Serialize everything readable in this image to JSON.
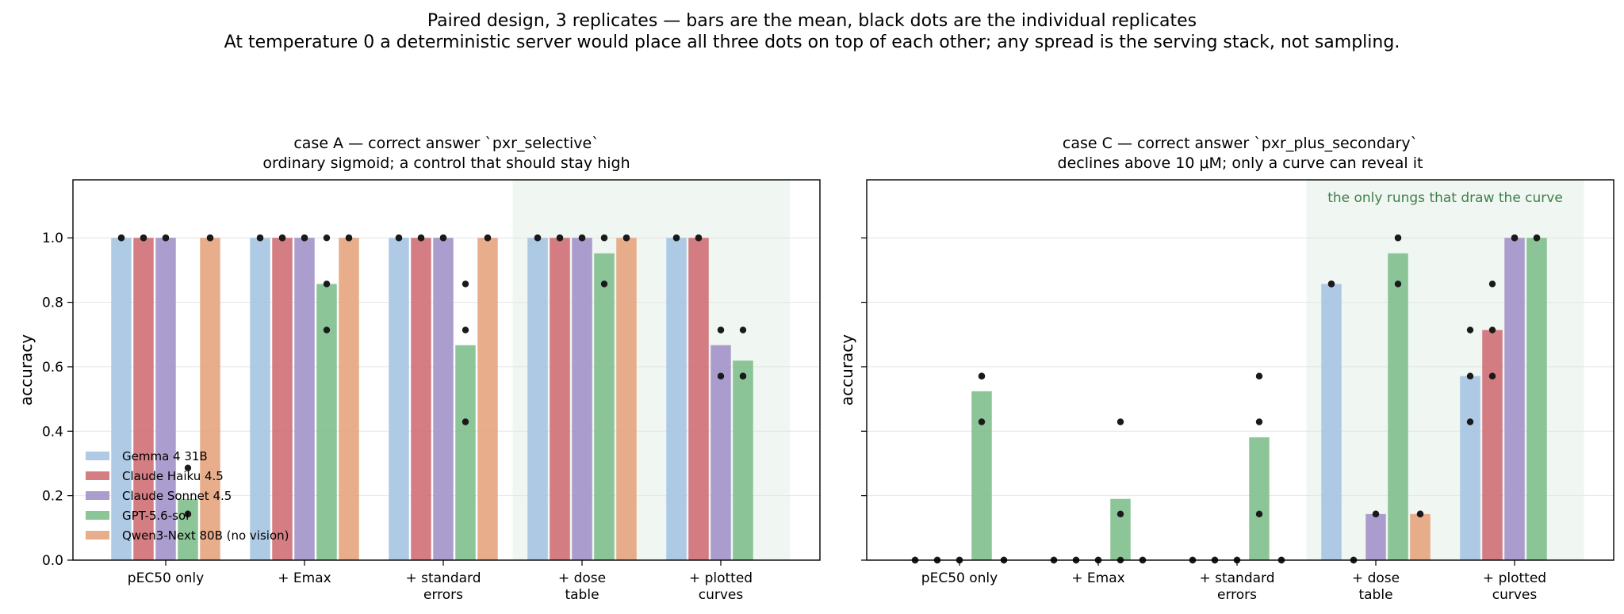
{
  "figure": {
    "suptitle_line1": "Paired design, 3 replicates — bars are the mean, black dots are the individual replicates",
    "suptitle_line2": "At temperature 0 a deterministic server would place all three dots on top of each other; any spread is the serving stack, not sampling."
  },
  "colors": {
    "Gemma 4 31B": "#a6c4e2",
    "Claude Haiku 4.5": "#cf6f76",
    "Claude Sonnet 4.5": "#a293c9",
    "GPT-5.6-sol": "#7fbf8c",
    "Qwen3-Next 80B (no vision)": "#e6a47e",
    "highlight_band": "#e6f0e8",
    "highlight_text": "#3f7f4a"
  },
  "chart_data": [
    {
      "type": "bar",
      "title": "case A — correct answer `pxr_selective`",
      "subtitle": "ordinary sigmoid; a control that should stay high",
      "xlabel": "",
      "ylabel": "accuracy",
      "ylim": [
        0,
        1.18
      ],
      "yticks": [
        "0.0",
        "0.2",
        "0.4",
        "0.6",
        "0.8",
        "1.0"
      ],
      "grid": "horizontal",
      "legend": "lower-left",
      "categories": [
        "pEC50 only",
        "+ Emax",
        "+ standard\nerrors",
        "+ dose\ntable",
        "+ plotted\ncurves"
      ],
      "highlight": {
        "from_category": 3,
        "to_category": 4,
        "label": ""
      },
      "series": [
        {
          "name": "Gemma 4 31B",
          "values": [
            1.0,
            1.0,
            1.0,
            1.0,
            1.0
          ],
          "replicates": [
            [
              1,
              1,
              1
            ],
            [
              1,
              1,
              1
            ],
            [
              1,
              1,
              1
            ],
            [
              1,
              1,
              1
            ],
            [
              1,
              1,
              1
            ]
          ]
        },
        {
          "name": "Claude Haiku 4.5",
          "values": [
            1.0,
            1.0,
            1.0,
            1.0,
            1.0
          ],
          "replicates": [
            [
              1,
              1,
              1
            ],
            [
              1,
              1,
              1
            ],
            [
              1,
              1,
              1
            ],
            [
              1,
              1,
              1
            ],
            [
              1,
              1,
              1
            ]
          ]
        },
        {
          "name": "Claude Sonnet 4.5",
          "values": [
            1.0,
            1.0,
            1.0,
            1.0,
            0.667
          ],
          "replicates": [
            [
              1,
              1,
              1
            ],
            [
              1,
              1,
              1
            ],
            [
              1,
              1,
              1
            ],
            [
              1,
              1,
              1
            ],
            [
              0.714,
              0.571,
              0.714
            ]
          ]
        },
        {
          "name": "GPT-5.6-sol",
          "values": [
            0.19,
            0.857,
            0.667,
            0.952,
            0.619
          ],
          "replicates": [
            [
              0.286,
              0.143,
              0.143
            ],
            [
              1.0,
              0.857,
              0.714
            ],
            [
              0.857,
              0.714,
              0.429
            ],
            [
              1.0,
              1.0,
              0.857
            ],
            [
              0.714,
              0.571,
              0.571
            ]
          ]
        },
        {
          "name": "Qwen3-Next 80B (no vision)",
          "values": [
            1.0,
            1.0,
            1.0,
            1.0,
            null
          ],
          "replicates": [
            [
              1,
              1,
              1
            ],
            [
              1,
              1,
              1
            ],
            [
              1,
              1,
              1
            ],
            [
              1,
              1,
              1
            ],
            null
          ]
        }
      ]
    },
    {
      "type": "bar",
      "title": "case C — correct answer `pxr_plus_secondary`",
      "subtitle": "declines above 10 μM; only a curve can reveal it",
      "xlabel": "",
      "ylabel": "accuracy",
      "ylim": [
        0,
        1.18
      ],
      "yticks": [],
      "grid": "horizontal",
      "legend": "none",
      "categories": [
        "pEC50 only",
        "+ Emax",
        "+ standard\nerrors",
        "+ dose\ntable",
        "+ plotted\ncurves"
      ],
      "highlight": {
        "from_category": 3,
        "to_category": 4,
        "label": "the only rungs that draw the curve"
      },
      "series": [
        {
          "name": "Gemma 4 31B",
          "values": [
            0,
            0,
            0,
            0.857,
            0.571
          ],
          "replicates": [
            [
              0,
              0,
              0
            ],
            [
              0,
              0,
              0
            ],
            [
              0,
              0,
              0
            ],
            [
              0.857,
              0.857,
              0.857
            ],
            [
              0.714,
              0.571,
              0.429
            ]
          ]
        },
        {
          "name": "Claude Haiku 4.5",
          "values": [
            0,
            0,
            0,
            0,
            0.714
          ],
          "replicates": [
            [
              0,
              0,
              0
            ],
            [
              0,
              0,
              0
            ],
            [
              0,
              0,
              0
            ],
            [
              0,
              0,
              0
            ],
            [
              0.857,
              0.714,
              0.571
            ]
          ]
        },
        {
          "name": "Claude Sonnet 4.5",
          "values": [
            0,
            0,
            0,
            0.143,
            1.0
          ],
          "replicates": [
            [
              0,
              0,
              0
            ],
            [
              0,
              0,
              0
            ],
            [
              0,
              0,
              0
            ],
            [
              0.143,
              0.143,
              0.143
            ],
            [
              1,
              1,
              1
            ]
          ]
        },
        {
          "name": "GPT-5.6-sol",
          "values": [
            0.524,
            0.19,
            0.381,
            0.952,
            1.0
          ],
          "replicates": [
            [
              0.571,
              0.571,
              0.429
            ],
            [
              0.429,
              0.143,
              0
            ],
            [
              0.571,
              0.429,
              0.143
            ],
            [
              1.0,
              1.0,
              0.857
            ],
            [
              1,
              1,
              1
            ]
          ]
        },
        {
          "name": "Qwen3-Next 80B (no vision)",
          "values": [
            0,
            0,
            0,
            0.143,
            null
          ],
          "replicates": [
            [
              0,
              0,
              0
            ],
            [
              0,
              0,
              0
            ],
            [
              0,
              0,
              0
            ],
            [
              0.143,
              0.143,
              0.143
            ],
            null
          ]
        }
      ]
    }
  ]
}
